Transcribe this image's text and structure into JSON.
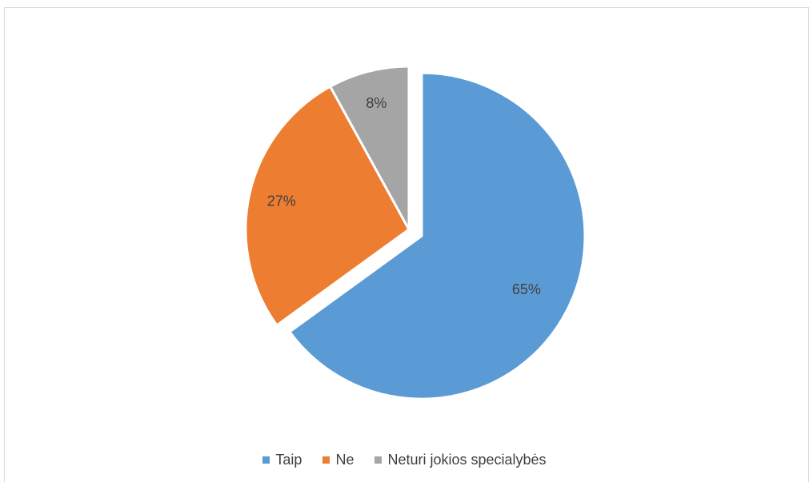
{
  "chart_data": {
    "type": "pie",
    "title": "",
    "categories": [
      "Taip",
      "Ne",
      "Neturi jokios specialybės"
    ],
    "values": [
      65,
      27,
      8
    ],
    "labels": [
      "65%",
      "27%",
      "8%"
    ],
    "colors": [
      "#5B9BD5",
      "#ED7D31",
      "#A5A5A5"
    ],
    "exploded": [
      true,
      false,
      false
    ],
    "legend_position": "bottom"
  },
  "legend": {
    "items": [
      {
        "label": "Taip",
        "color": "#5B9BD5"
      },
      {
        "label": "Ne",
        "color": "#ED7D31"
      },
      {
        "label": "Neturi jokios specialybės",
        "color": "#A5A5A5"
      }
    ]
  }
}
